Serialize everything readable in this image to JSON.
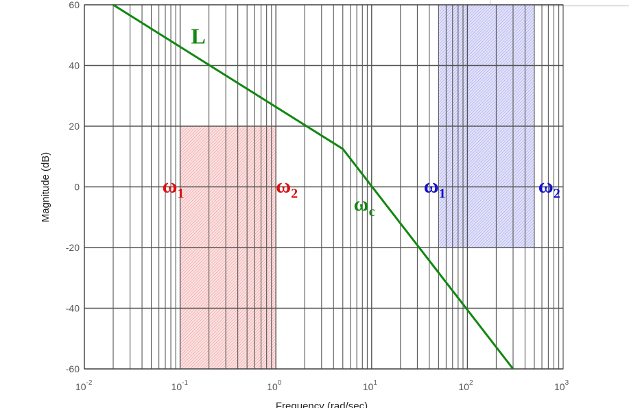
{
  "chart_data": {
    "type": "line",
    "xlabel": "Frequency  (rad/sec)",
    "ylabel": "Magnitude (dB)",
    "xscale": "log",
    "xlim": [
      0.01,
      1000
    ],
    "ylim": [
      -60,
      60
    ],
    "grid": true,
    "x_ticks": [
      {
        "base": "10",
        "exp": "-2"
      },
      {
        "base": "10",
        "exp": "-1"
      },
      {
        "base": "10",
        "exp": "0"
      },
      {
        "base": "10",
        "exp": "1"
      },
      {
        "base": "10",
        "exp": "2"
      },
      {
        "base": "10",
        "exp": "3"
      }
    ],
    "y_ticks": [
      "60",
      "40",
      "20",
      "0",
      "-20",
      "-40",
      "-60"
    ],
    "series": [
      {
        "name": "L",
        "color": "#118811",
        "points": [
          [
            0.02,
            60
          ],
          [
            5,
            12.5
          ],
          [
            300,
            -60
          ]
        ]
      }
    ],
    "regions": [
      {
        "x": [
          0.1,
          1
        ],
        "y": [
          -60,
          20
        ],
        "color": "#f08080"
      },
      {
        "x": [
          50,
          500
        ],
        "y": [
          -20,
          60
        ],
        "color": "#8a8ae6"
      }
    ],
    "annotations": {
      "L": {
        "text": "L",
        "color": "#118811",
        "x": 0.13,
        "y": 49
      },
      "wc": {
        "text": "ω",
        "sub": "c",
        "color": "#118811",
        "x": 6.5,
        "y": -6
      },
      "red_w1": {
        "text": "ω",
        "sub": "1",
        "color": "#dd1111",
        "x": 0.065,
        "y": 0
      },
      "red_w2": {
        "text": "ω",
        "sub": "2",
        "color": "#dd1111",
        "x": 1.0,
        "y": 0
      },
      "blue_w1": {
        "text": "ω",
        "sub": "1",
        "color": "#1111cc",
        "x": 35,
        "y": 0
      },
      "blue_w2": {
        "text": "ω",
        "sub": "2",
        "color": "#1111cc",
        "x": 550,
        "y": 0
      }
    }
  }
}
